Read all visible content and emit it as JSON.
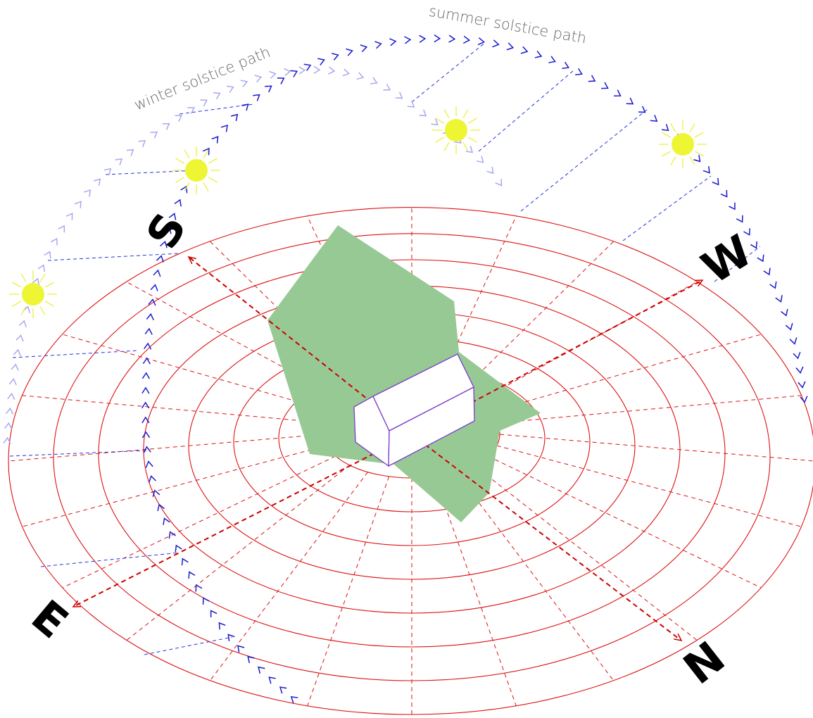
{
  "paths": {
    "winter": "winter solstice path",
    "summer": "summer solstice path"
  },
  "compass": {
    "south": "S",
    "west": "W",
    "east": "E",
    "north": "N"
  }
}
